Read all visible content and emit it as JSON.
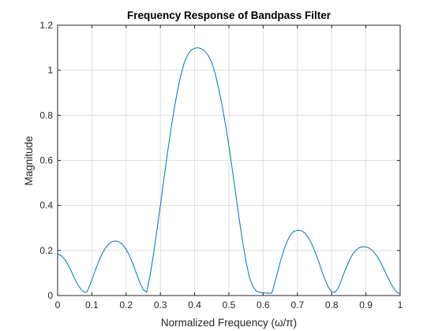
{
  "chart_data": {
    "type": "line",
    "title": "Frequency Response of Bandpass Filter",
    "xlabel": "Normalized Frequency (ω/π)",
    "ylabel": "Magnitude",
    "xlim": [
      0,
      1
    ],
    "ylim": [
      0,
      1.2
    ],
    "xticks": [
      0,
      0.1,
      0.2,
      0.3,
      0.4,
      0.5,
      0.6,
      0.7,
      0.8,
      0.9,
      1
    ],
    "xtick_labels": [
      "0",
      "0.1",
      "0.2",
      "0.3",
      "0.4",
      "0.5",
      "0.6",
      "0.7",
      "0.8",
      "0.9",
      "1"
    ],
    "yticks": [
      0,
      0.2,
      0.4,
      0.6,
      0.8,
      1,
      1.2
    ],
    "ytick_labels": [
      "0",
      "0.2",
      "0.4",
      "0.6",
      "0.8",
      "1",
      "1.2"
    ],
    "grid": true,
    "series": [
      {
        "name": "magnitude",
        "color": "#0072BD",
        "x": [
          0,
          0.01,
          0.02,
          0.03,
          0.04,
          0.05,
          0.06,
          0.07,
          0.08,
          0.085,
          0.09,
          0.1,
          0.11,
          0.12,
          0.13,
          0.14,
          0.15,
          0.16,
          0.17,
          0.18,
          0.19,
          0.2,
          0.21,
          0.22,
          0.23,
          0.24,
          0.25,
          0.26,
          0.27,
          0.28,
          0.29,
          0.3,
          0.31,
          0.32,
          0.33,
          0.34,
          0.35,
          0.36,
          0.37,
          0.38,
          0.39,
          0.4,
          0.41,
          0.42,
          0.43,
          0.44,
          0.45,
          0.46,
          0.47,
          0.48,
          0.49,
          0.5,
          0.51,
          0.52,
          0.53,
          0.54,
          0.55,
          0.56,
          0.57,
          0.58,
          0.59,
          0.6,
          0.61,
          0.62,
          0.625,
          0.63,
          0.64,
          0.65,
          0.66,
          0.67,
          0.68,
          0.69,
          0.7,
          0.71,
          0.72,
          0.73,
          0.74,
          0.75,
          0.76,
          0.77,
          0.78,
          0.79,
          0.8,
          0.81,
          0.82,
          0.83,
          0.84,
          0.85,
          0.86,
          0.87,
          0.88,
          0.89,
          0.9,
          0.91,
          0.92,
          0.93,
          0.94,
          0.95,
          0.96,
          0.97,
          0.98,
          0.99,
          1
        ],
        "values": [
          0.184,
          0.178,
          0.162,
          0.138,
          0.108,
          0.074,
          0.046,
          0.024,
          0.014,
          0.015,
          0.03,
          0.07,
          0.112,
          0.152,
          0.186,
          0.212,
          0.23,
          0.24,
          0.242,
          0.238,
          0.226,
          0.205,
          0.176,
          0.14,
          0.098,
          0.058,
          0.026,
          0.015,
          0.09,
          0.185,
          0.29,
          0.4,
          0.515,
          0.625,
          0.73,
          0.825,
          0.91,
          0.98,
          1.035,
          1.07,
          1.09,
          1.098,
          1.1,
          1.096,
          1.085,
          1.065,
          1.035,
          0.985,
          0.92,
          0.845,
          0.76,
          0.665,
          0.56,
          0.45,
          0.34,
          0.24,
          0.15,
          0.08,
          0.04,
          0.02,
          0.014,
          0.012,
          0.011,
          0.01,
          0.01,
          0.035,
          0.09,
          0.15,
          0.2,
          0.24,
          0.27,
          0.285,
          0.29,
          0.289,
          0.28,
          0.262,
          0.235,
          0.2,
          0.16,
          0.115,
          0.072,
          0.038,
          0.016,
          0.014,
          0.035,
          0.075,
          0.115,
          0.15,
          0.18,
          0.2,
          0.212,
          0.217,
          0.216,
          0.21,
          0.198,
          0.18,
          0.155,
          0.125,
          0.093,
          0.062,
          0.035,
          0.015,
          0.007
        ]
      }
    ]
  }
}
